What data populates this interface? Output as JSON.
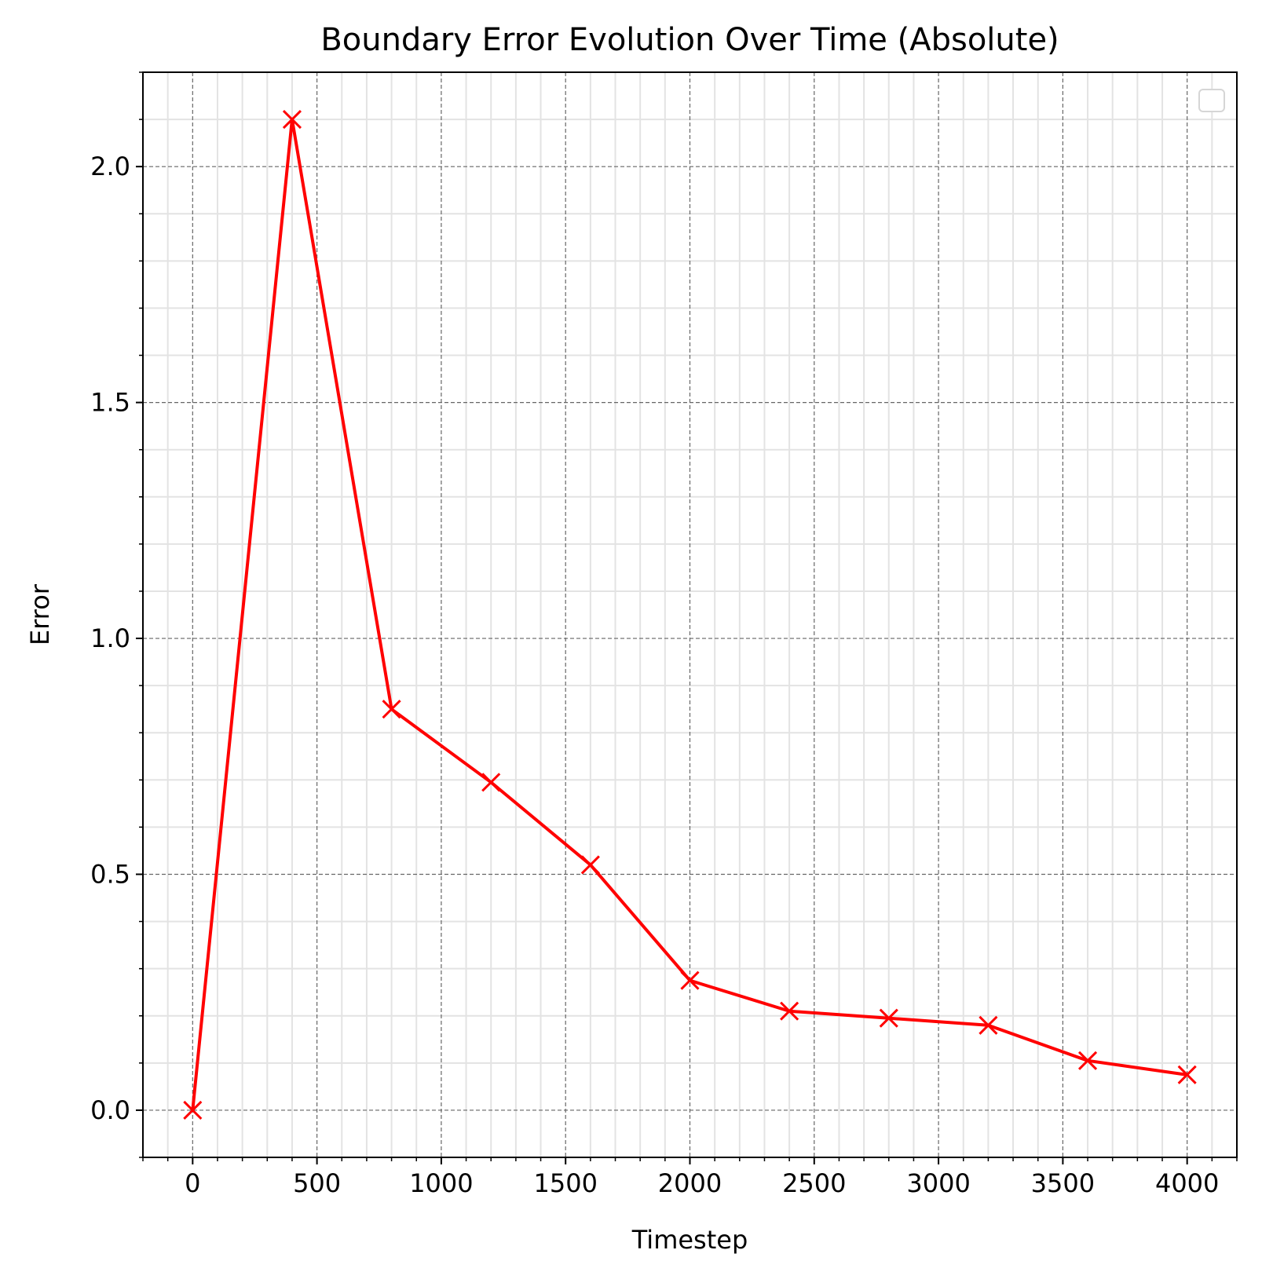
{
  "chart_data": {
    "type": "line",
    "title": "Boundary Error Evolution Over Time (Absolute)",
    "xlabel": "Timestep",
    "ylabel": "Error",
    "xlim": [
      -200,
      4200
    ],
    "ylim": [
      -0.1,
      2.2
    ],
    "x_ticks": [
      0,
      500,
      1000,
      1500,
      2000,
      2500,
      3000,
      3500,
      4000
    ],
    "x_tick_labels": [
      "0",
      "500",
      "1000",
      "1500",
      "2000",
      "2500",
      "3000",
      "3500",
      "4000"
    ],
    "y_ticks": [
      0.0,
      0.5,
      1.0,
      1.5,
      2.0
    ],
    "y_tick_labels": [
      "0.0",
      "0.5",
      "1.0",
      "1.5",
      "2.0"
    ],
    "x_minor_step": 100,
    "y_minor_step": 0.1,
    "grid": true,
    "legend": "top-right (empty)",
    "series": [
      {
        "color": "#ff0000",
        "marker": "x",
        "x": [
          0,
          400,
          800,
          1200,
          1600,
          2000,
          2400,
          2800,
          3200,
          3600,
          4000
        ],
        "y": [
          0.0,
          2.1,
          0.85,
          0.695,
          0.52,
          0.275,
          0.21,
          0.195,
          0.18,
          0.105,
          0.075
        ]
      }
    ]
  }
}
